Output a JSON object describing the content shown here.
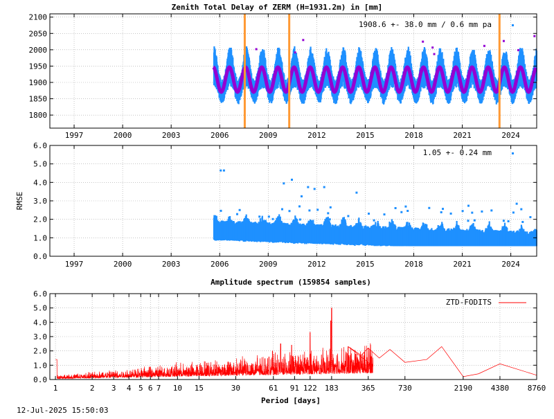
{
  "chart_data": [
    {
      "type": "scatter",
      "title": "Zenith Total Delay of ZERM (H=1931.2m) in [mm]",
      "xlabel": "",
      "ylabel": "",
      "xlim": [
        1995.5,
        2025.6
      ],
      "ylim": [
        1760,
        2110
      ],
      "grid": true,
      "x_ticks": [
        "1997",
        "2000",
        "2003",
        "2006",
        "2009",
        "2012",
        "2015",
        "2018",
        "2021",
        "2024"
      ],
      "y_ticks": [
        "1800",
        "1850",
        "1900",
        "1950",
        "2000",
        "2050",
        "2100"
      ],
      "annotation": "1908.6 +-  38.0 mm /  0.6 mm pa",
      "mean": 1908.6,
      "seasonal_amplitude": 38.0,
      "data_start": 2005.6,
      "data_end": 2025.55,
      "breaks": [
        2007.55,
        2010.3,
        2023.3
      ],
      "colors": {
        "data": "#1e90ff",
        "model": "#9400d3",
        "breaks": "#ff9933",
        "outliers": "#9400d3"
      }
    },
    {
      "type": "scatter",
      "title": "",
      "xlabel": "",
      "ylabel": "RMSE",
      "xlim": [
        1995.5,
        2025.6
      ],
      "ylim": [
        0,
        6
      ],
      "grid": true,
      "x_ticks": [
        "1997",
        "2000",
        "2003",
        "2006",
        "2009",
        "2012",
        "2015",
        "2018",
        "2021",
        "2024"
      ],
      "y_ticks": [
        "0.0",
        "1.0",
        "2.0",
        "3.0",
        "4.0",
        "5.0",
        "6.0"
      ],
      "annotation": "1.05 +-  0.24 mm",
      "mean": 1.05,
      "std": 0.24,
      "outliers": [
        [
          2006.0,
          4.7
        ],
        [
          2006.2,
          4.7
        ],
        [
          2009.9,
          4.0
        ],
        [
          2010.4,
          4.2
        ],
        [
          2011.4,
          3.8
        ],
        [
          2011.8,
          3.7
        ],
        [
          2012.4,
          3.8
        ],
        [
          2014.4,
          3.5
        ],
        [
          2011.0,
          3.3
        ],
        [
          2024.3,
          2.9
        ]
      ],
      "colors": {
        "data": "#1e90ff"
      }
    },
    {
      "type": "line",
      "title": "Amplitude spectrum (159854 samples)",
      "xlabel": "Period [days]",
      "ylabel": "",
      "xscale": "log",
      "xlim": [
        0.9,
        8760
      ],
      "ylim": [
        0,
        6
      ],
      "grid": true,
      "x_ticks": [
        "1",
        "2",
        "3",
        "4",
        "5",
        "6",
        "7",
        "10",
        "15",
        "30",
        "61",
        "91",
        "122",
        "183",
        "365",
        "730",
        "2190",
        "4380",
        "8760"
      ],
      "y_ticks": [
        "0.0",
        "1.0",
        "2.0",
        "3.0",
        "4.0",
        "5.0",
        "6.0"
      ],
      "legend": "ZTD-FODITS",
      "legend_position": "top-right",
      "peaks": [
        [
          1,
          1.4
        ],
        [
          183,
          5.0
        ],
        [
          180,
          4.1
        ],
        [
          122,
          3.3
        ],
        [
          86,
          2.4
        ],
        [
          70,
          2.5
        ],
        [
          60,
          2.0
        ],
        [
          250,
          2.3
        ],
        [
          320,
          1.7
        ],
        [
          365,
          2.2
        ],
        [
          450,
          1.5
        ],
        [
          550,
          2.1
        ],
        [
          730,
          1.2
        ],
        [
          1100,
          1.4
        ],
        [
          1460,
          2.3
        ],
        [
          2190,
          0.2
        ],
        [
          2920,
          0.4
        ],
        [
          4380,
          1.1
        ],
        [
          8760,
          0.3
        ]
      ],
      "colors": {
        "line": "#ff0000"
      }
    }
  ],
  "footer": {
    "timestamp": "12-Jul-2025 15:50:03"
  }
}
